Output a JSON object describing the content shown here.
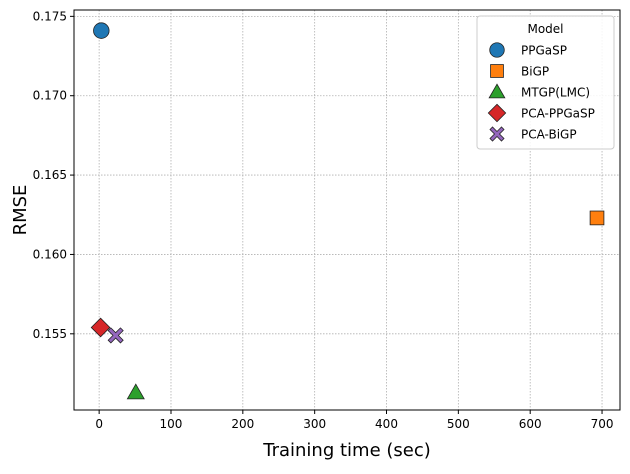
{
  "chart_data": {
    "type": "scatter",
    "title": "",
    "xlabel": "Training time (sec)",
    "ylabel": "RMSE",
    "xlim": [
      -35,
      725
    ],
    "ylim": [
      0.1502,
      0.1754
    ],
    "xticks": [
      0,
      100,
      200,
      300,
      400,
      500,
      600,
      700
    ],
    "yticks": [
      0.155,
      0.16,
      0.165,
      0.17,
      0.175
    ],
    "ytick_labels": [
      "0.155",
      "0.160",
      "0.165",
      "0.170",
      "0.175"
    ],
    "grid": true,
    "legend": {
      "title": "Model",
      "placement": "top-right"
    },
    "series": [
      {
        "name": "PPGaSP",
        "marker": "circle",
        "color": "#1f77b4",
        "points": [
          [
            3,
            0.1741
          ]
        ]
      },
      {
        "name": "BiGP",
        "marker": "square",
        "color": "#ff7f0e",
        "points": [
          [
            693,
            0.1623
          ]
        ]
      },
      {
        "name": "MTGP(LMC)",
        "marker": "triangle",
        "color": "#2ca02c",
        "points": [
          [
            51,
            0.1513
          ]
        ]
      },
      {
        "name": "PCA-PPGaSP",
        "marker": "diamond",
        "color": "#d62728",
        "points": [
          [
            2,
            0.1554
          ]
        ]
      },
      {
        "name": "PCA-BiGP",
        "marker": "x",
        "color": "#9467bd",
        "points": [
          [
            23,
            0.1549
          ]
        ]
      }
    ]
  }
}
